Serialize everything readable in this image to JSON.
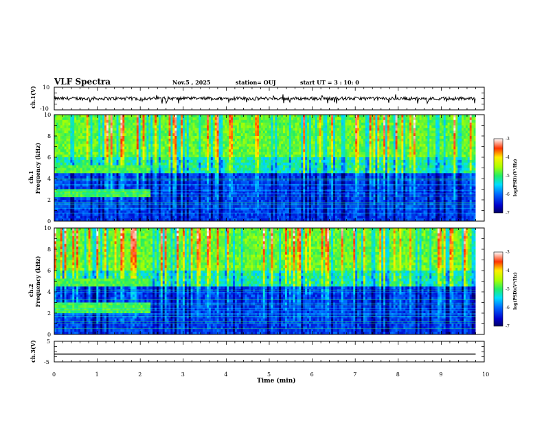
{
  "header": {
    "title": "VLF Spectra",
    "date": "Nov.5 , 2025",
    "station": "station= OUJ",
    "start": "start UT = 3 : 10: 0"
  },
  "chart_data": [
    {
      "name": "ch1-voltage",
      "type": "line",
      "ylabel": "ch.1(V)",
      "ylim": [
        -10,
        10
      ],
      "yticks": [
        "10",
        "-10"
      ],
      "xlim": [
        0,
        10
      ],
      "baseline": 0,
      "description_values": {
        "noise_amplitude": 1.5,
        "spike_min": -3
      }
    },
    {
      "name": "ch1-spectrogram",
      "type": "heatmap",
      "ylabel": "ch.1\nFrequency (kHz)",
      "ylabel_line1": "ch.1",
      "ylabel_line2": "Frequency (kHz)",
      "ylim": [
        0,
        10
      ],
      "yticks": [
        "0",
        "2",
        "4",
        "6",
        "8",
        "10"
      ],
      "xlim": [
        0,
        10
      ],
      "colorbar": {
        "label": "log(PSD)(V²/Hz)",
        "range": [
          -7,
          -3
        ],
        "ticks": [
          "-3",
          "-4",
          "-5",
          "-6",
          "-7"
        ]
      },
      "bands_early": [
        {
          "freq_khz": 4.9,
          "t_end_min": 2.2
        },
        {
          "freq_khz": 2.6,
          "t_end_min": 2.2
        }
      ]
    },
    {
      "name": "ch2-spectrogram",
      "type": "heatmap",
      "ylabel": "ch.2\nFrequency (kHz)",
      "ylabel_line1": "ch.2",
      "ylabel_line2": "Frequency (kHz)",
      "ylim": [
        0,
        10
      ],
      "yticks": [
        "0",
        "2",
        "4",
        "6",
        "8",
        "10"
      ],
      "xlim": [
        0,
        10
      ],
      "colorbar": {
        "label": "log(PSD)(V²/Hz)",
        "range": [
          -7,
          -3
        ],
        "ticks": [
          "-3",
          "-4",
          "-5",
          "-6",
          "-7"
        ]
      },
      "bands_early": [
        {
          "freq_khz": 4.9,
          "t_end_min": 2.2
        },
        {
          "freq_khz": 2.5,
          "t_end_min": 2.2
        }
      ]
    },
    {
      "name": "ch3-voltage",
      "type": "line",
      "ylabel": "ch.3(V)",
      "ylim": [
        -5,
        5
      ],
      "yticks": [
        "5",
        "-5"
      ],
      "xlim": [
        0,
        10
      ],
      "constant_value": -1.2
    }
  ],
  "xaxis": {
    "label": "Time (min)",
    "ticks": [
      "0",
      "1",
      "2",
      "3",
      "4",
      "5",
      "6",
      "7",
      "8",
      "9",
      "10"
    ],
    "data_end_min": 9.8
  }
}
